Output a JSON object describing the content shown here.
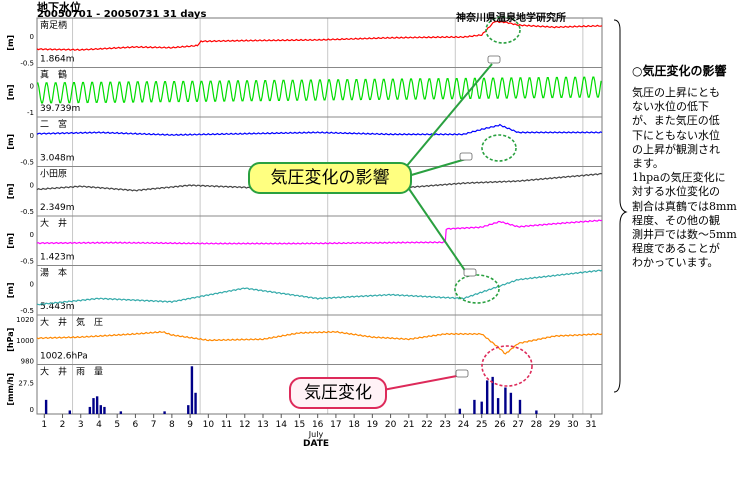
{
  "header": {
    "title": "地下水位",
    "range": "20050701 - 20050731 31 days",
    "organization": "神奈川県温泉地学研究所"
  },
  "notes": {
    "title": "○気圧変化の影響",
    "lines": [
      "気圧の上昇にとも",
      "ない水位の低下",
      "が、また気圧の低",
      "下にともない水位",
      "の上昇が観測され",
      "ます。",
      "1hpaの気圧変化に",
      "対する水位変化の",
      "割合は真鶴では8mm",
      "程度、その他の観",
      "測井戸では数～5mm",
      "程度であることが",
      "わかっています。"
    ]
  },
  "callouts": {
    "pressure_effect": "気圧変化の影響",
    "pressure_change": "気圧変化"
  },
  "colors": {
    "red": "#ff0000",
    "green": "#00dd00",
    "blue": "#0000ff",
    "black": "#444444",
    "magenta": "#ff00ff",
    "teal": "#33aaaa",
    "orange": "#ff8800",
    "navy": "#000088",
    "callout_green": "#2aa040",
    "callout_red": "#dd2a5a"
  },
  "chart_data": {
    "type": "line",
    "xlabel": "DATE",
    "x_sub_label": "July",
    "x_ticks": [
      "1",
      "2",
      "3",
      "4",
      "5",
      "6",
      "7",
      "8",
      "9",
      "10",
      "11",
      "12",
      "13",
      "14",
      "15",
      "16",
      "17",
      "18",
      "19",
      "20",
      "21",
      "22",
      "23",
      "24",
      "25",
      "26",
      "27",
      "28",
      "29",
      "30",
      "31"
    ],
    "x_range": [
      0.6,
      31.6
    ],
    "panels": [
      {
        "station": "南足柄",
        "unit": "[m]",
        "value_label": "1.864m",
        "yticks": [
          "0",
          "-0.5"
        ],
        "color": "red",
        "points": [
          [
            0.6,
            -0.29
          ],
          [
            3,
            -0.3
          ],
          [
            6,
            -0.26
          ],
          [
            8,
            -0.27
          ],
          [
            9.4,
            -0.24
          ],
          [
            9.6,
            -0.18
          ],
          [
            12,
            -0.17
          ],
          [
            16,
            -0.16
          ],
          [
            20,
            -0.13
          ],
          [
            23,
            -0.12
          ],
          [
            24,
            -0.12
          ],
          [
            25,
            -0.09
          ],
          [
            25.7,
            0.1
          ],
          [
            26.3,
            0.09
          ],
          [
            27,
            0.05
          ],
          [
            29,
            0.02
          ],
          [
            31.6,
            0.04
          ]
        ]
      },
      {
        "station": "真　鶴",
        "unit": "[m]",
        "value_label": "39.739m",
        "yticks": [
          "0",
          "-1"
        ],
        "color": "green",
        "oscillation": {
          "base_start": -0.25,
          "base_end": -0.05,
          "amplitude": 0.35,
          "period_days": 0.5
        },
        "points": []
      },
      {
        "station": "二　宮",
        "unit": "[m]",
        "value_label": "3.048m",
        "yticks": [
          "0",
          "-0.5"
        ],
        "color": "blue",
        "points": [
          [
            0.6,
            -0.02
          ],
          [
            4,
            0.0
          ],
          [
            8,
            -0.04
          ],
          [
            12,
            -0.02
          ],
          [
            16,
            0.0
          ],
          [
            20,
            -0.03
          ],
          [
            24,
            -0.03
          ],
          [
            25,
            0.05
          ],
          [
            26,
            0.12
          ],
          [
            27,
            0.0
          ],
          [
            31.6,
            0.0
          ]
        ]
      },
      {
        "station": "小田原",
        "unit": "[m]",
        "value_label": "2.349m",
        "yticks": [
          "0",
          "-0.5"
        ],
        "color": "black",
        "points": [
          [
            0.6,
            -0.04
          ],
          [
            3,
            0.02
          ],
          [
            6,
            -0.06
          ],
          [
            9,
            0.04
          ],
          [
            12,
            0.0
          ],
          [
            15,
            -0.08
          ],
          [
            18,
            0.08
          ],
          [
            21,
            0.0
          ],
          [
            24,
            0.08
          ],
          [
            27,
            0.12
          ],
          [
            31.6,
            0.26
          ]
        ]
      },
      {
        "station": "大　井",
        "unit": "[m]",
        "value_label": "1.423m",
        "yticks": [
          "0",
          "-0.5"
        ],
        "color": "magenta",
        "points": [
          [
            0.6,
            -0.03
          ],
          [
            5,
            -0.02
          ],
          [
            10,
            -0.04
          ],
          [
            15,
            -0.04
          ],
          [
            20,
            -0.02
          ],
          [
            23,
            -0.01
          ],
          [
            23.05,
            0.3
          ],
          [
            25,
            0.34
          ],
          [
            26,
            0.47
          ],
          [
            27,
            0.35
          ],
          [
            29,
            0.42
          ],
          [
            31.6,
            0.5
          ]
        ]
      },
      {
        "station": "湯　本",
        "unit": "[m]",
        "value_label": "5.443m",
        "yticks": [
          "0",
          "-0.5"
        ],
        "color": "teal",
        "points": [
          [
            0.6,
            -0.33
          ],
          [
            4,
            -0.2
          ],
          [
            8,
            -0.27
          ],
          [
            12,
            0.02
          ],
          [
            16,
            -0.2
          ],
          [
            20,
            -0.12
          ],
          [
            24,
            -0.2
          ],
          [
            27,
            0.2
          ],
          [
            31.6,
            0.4
          ]
        ]
      },
      {
        "station": "大　井　気　圧",
        "unit": "[hPa]",
        "value_label": "1002.6hPa",
        "yticks": [
          "1020",
          "1000",
          "980"
        ],
        "color": "orange",
        "points": [
          [
            0.6,
            1000
          ],
          [
            3,
            1001
          ],
          [
            6,
            1004
          ],
          [
            7.5,
            1006
          ],
          [
            8,
            1003
          ],
          [
            10,
            998
          ],
          [
            13,
            999
          ],
          [
            15,
            1005
          ],
          [
            17,
            1006
          ],
          [
            19,
            1001
          ],
          [
            21,
            999
          ],
          [
            23,
            1004
          ],
          [
            25,
            1004
          ],
          [
            26,
            990
          ],
          [
            26.3,
            985
          ],
          [
            27,
            995
          ],
          [
            29,
            1002
          ],
          [
            31.6,
            1004
          ]
        ]
      },
      {
        "station": "大　井　雨　量",
        "unit": "[mm/h]",
        "value_label": "",
        "yticks": [
          "27.5",
          "0"
        ],
        "color": "navy",
        "bars": [
          [
            1.1,
            8
          ],
          [
            2.4,
            2
          ],
          [
            3.5,
            4
          ],
          [
            3.7,
            9
          ],
          [
            3.9,
            10
          ],
          [
            4.1,
            5
          ],
          [
            4.3,
            4
          ],
          [
            5.2,
            1.5
          ],
          [
            7.6,
            1.5
          ],
          [
            8.9,
            5
          ],
          [
            9.1,
            27
          ],
          [
            9.3,
            12
          ],
          [
            23.8,
            3
          ],
          [
            24.6,
            8
          ],
          [
            25,
            7
          ],
          [
            25.3,
            19
          ],
          [
            25.6,
            21
          ],
          [
            25.9,
            9
          ],
          [
            26.3,
            15
          ],
          [
            26.6,
            12
          ],
          [
            27.1,
            8
          ],
          [
            28,
            2
          ]
        ]
      }
    ]
  }
}
